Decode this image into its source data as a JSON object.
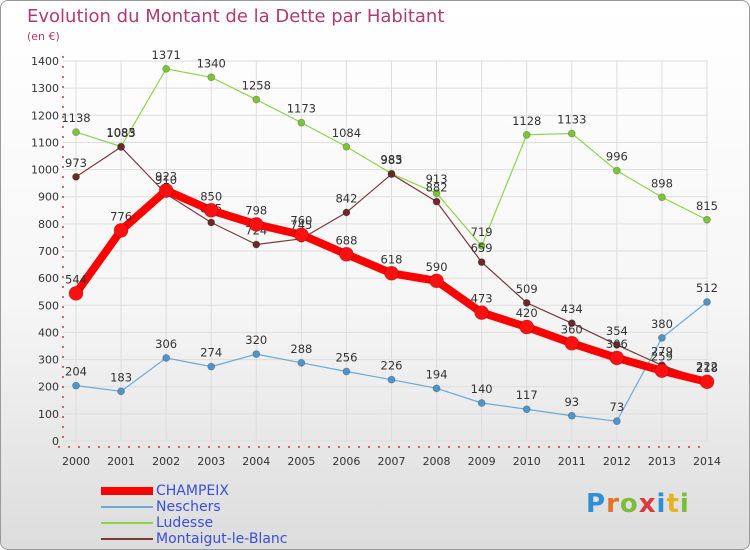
{
  "title": "Evolution du Montant de la Dette par Habitant",
  "unit": "(en €)",
  "brand": {
    "letters": [
      "P",
      "r",
      "o",
      "x",
      "i",
      "t",
      "i"
    ],
    "colors": [
      "#2f8fd6",
      "#e0742a",
      "#7bbd3a",
      "#d93b3b",
      "#2f8fd6",
      "#e8b21c",
      "#7bbd3a"
    ]
  },
  "chart_data": {
    "type": "line",
    "categories": [
      "2000",
      "2001",
      "2002",
      "2003",
      "2004",
      "2005",
      "2006",
      "2007",
      "2008",
      "2009",
      "2010",
      "2011",
      "2012",
      "2013",
      "2014"
    ],
    "ylim": [
      0,
      1400
    ],
    "yticks": [
      0,
      100,
      200,
      300,
      400,
      500,
      600,
      700,
      800,
      900,
      1000,
      1100,
      1200,
      1300,
      1400
    ],
    "grid": true,
    "legend_position": "bottom-left",
    "series": [
      {
        "name": "Ludesse",
        "color": "#8fd44c",
        "marker": "#7cc43c",
        "width": 1.2,
        "r": 3.5,
        "values": [
          1138,
          1085,
          1371,
          1340,
          1258,
          1173,
          1084,
          985,
          913,
          719,
          1128,
          1133,
          996,
          898,
          815
        ]
      },
      {
        "name": "Neschers",
        "color": "#6aaad8",
        "marker": "#4e95cc",
        "width": 1.2,
        "r": 3.5,
        "values": [
          204,
          183,
          306,
          274,
          320,
          288,
          256,
          226,
          194,
          140,
          117,
          93,
          73,
          380,
          512
        ]
      },
      {
        "name": "Montaigut-le-Blanc",
        "color": "#7a3a3a",
        "marker": "#6b2a2a",
        "width": 1.2,
        "r": 3.5,
        "values": [
          973,
          1083,
          910,
          805,
          724,
          745,
          842,
          983,
          882,
          659,
          509,
          434,
          354,
          279,
          222
        ]
      },
      {
        "name": "CHAMPEIX",
        "color": "#ff0000",
        "marker": "#ff1010",
        "width": 8,
        "r": 7,
        "values": [
          544,
          776,
          923,
          850,
          798,
          760,
          688,
          618,
          590,
          473,
          420,
          360,
          306,
          259,
          218
        ]
      }
    ],
    "legend_order": [
      "CHAMPEIX",
      "Neschers",
      "Ludesse",
      "Montaigut-le-Blanc"
    ]
  }
}
